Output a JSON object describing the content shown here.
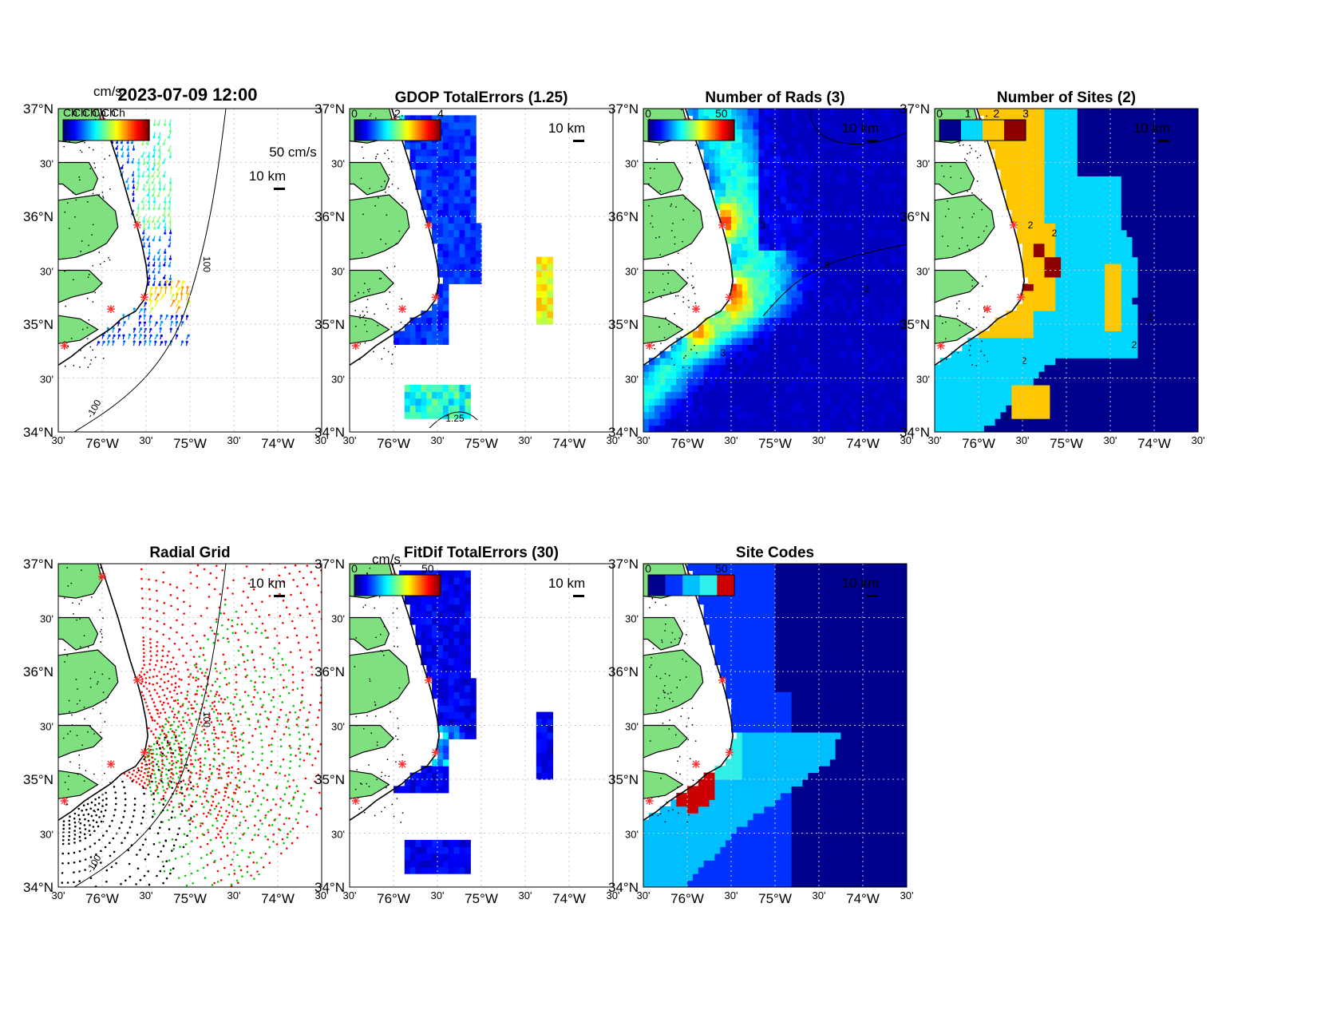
{
  "figure": {
    "timestamp": "2023-07-09 12:00",
    "colors": {
      "land": "#7fe07f",
      "coast": "#000000",
      "site_marker": "#ff2a2a",
      "grid": "#c8c8c8"
    },
    "lat_ticks": [
      "37°N",
      "30'",
      "36°N",
      "30'",
      "35°N",
      "30'",
      "34°N"
    ],
    "lon_ticks": [
      "30'",
      "76°W",
      "30'",
      "75°W",
      "30'",
      "74°W",
      "30'"
    ],
    "scale_label": "10 km",
    "panels": [
      {
        "id": "currents",
        "title": "",
        "type": "vector-field",
        "colorbar_units": "cm/s",
        "colorbar_ticks": [],
        "vector_scale_label": "50 cm/s",
        "stacked_label_fragment": "Ch",
        "contour_labels": [
          "100",
          "-100"
        ]
      },
      {
        "id": "gdop",
        "title": "GDOP TotalErrors (1.25)",
        "type": "heatmap",
        "colorbar_units": "",
        "colorbar_ticks": [
          "0",
          "2",
          "4"
        ],
        "contour_labels": [
          "1.25"
        ]
      },
      {
        "id": "nrads",
        "title": "Number of Rads (3)",
        "type": "heatmap",
        "colorbar_units": "",
        "colorbar_ticks": [
          "0",
          "50"
        ],
        "contour_labels": [
          "3",
          "3",
          "3",
          "3"
        ]
      },
      {
        "id": "nsites",
        "title": "Number of Sites (2)",
        "type": "categorical",
        "colorbar_units": "",
        "colorbar_ticks": [
          "0",
          "1",
          "2",
          "3"
        ],
        "category_colors": [
          "#00008f",
          "#00d7ff",
          "#ffc700",
          "#8f0000"
        ],
        "contour_labels": [
          "2",
          "2",
          "2",
          "2",
          "2",
          "2"
        ]
      },
      {
        "id": "radial",
        "title": "Radial Grid",
        "type": "point-grid",
        "colorbar_units": "",
        "colorbar_ticks": [],
        "site_colors": [
          "#0000ff",
          "#ff0000",
          "#00cc00",
          "#ff0000",
          "#000000"
        ],
        "contour_labels": [
          "100",
          "-100"
        ]
      },
      {
        "id": "fitdif",
        "title": "FitDif TotalErrors (30)",
        "type": "heatmap",
        "colorbar_units": "cm/s",
        "colorbar_ticks": [
          "0",
          "50"
        ],
        "contour_labels": []
      },
      {
        "id": "sitecodes",
        "title": "Site Codes",
        "type": "categorical",
        "colorbar_units": "",
        "colorbar_ticks": [
          "0",
          "50"
        ],
        "category_colors": [
          "#00008f",
          "#0033ff",
          "#00bfff",
          "#2ef0e8",
          "#cc0000"
        ],
        "contour_labels": []
      }
    ]
  }
}
